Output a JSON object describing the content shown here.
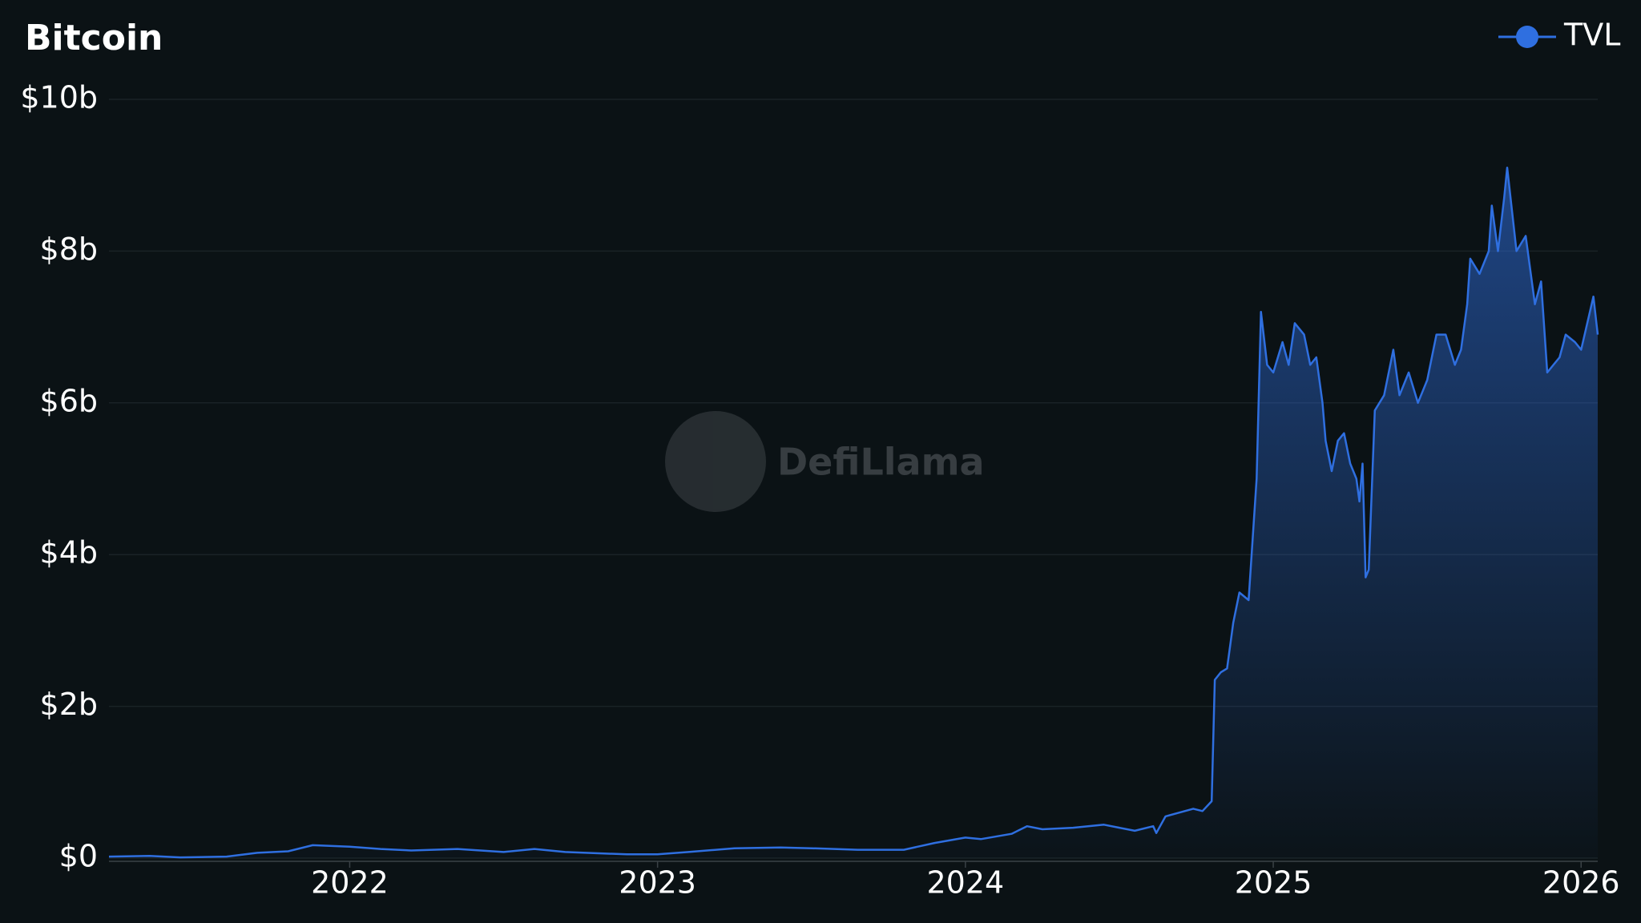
{
  "chart_data": {
    "type": "line",
    "title": "Bitcoin",
    "watermark": "DefiLlama",
    "legend": "top-right",
    "grid": true,
    "xlim": [
      2021.218,
      2026.054
    ],
    "xticks": [
      2022,
      2023,
      2024,
      2025,
      2026
    ],
    "ylim": [
      0,
      10000000000
    ],
    "yticks": [
      {
        "value": 0,
        "label": "$0"
      },
      {
        "value": 2000000000,
        "label": "$2b"
      },
      {
        "value": 4000000000,
        "label": "$4b"
      },
      {
        "value": 6000000000,
        "label": "$6b"
      },
      {
        "value": 8000000000,
        "label": "$8b"
      },
      {
        "value": 10000000000,
        "label": "$10b"
      }
    ],
    "x": [
      2021.218,
      2021.35,
      2021.45,
      2021.6,
      2021.7,
      2021.8,
      2021.88,
      2022.0,
      2022.1,
      2022.2,
      2022.35,
      2022.5,
      2022.6,
      2022.7,
      2022.9,
      2023.0,
      2023.1,
      2023.25,
      2023.4,
      2023.5,
      2023.65,
      2023.8,
      2023.9,
      2024.0,
      2024.05,
      2024.15,
      2024.2,
      2024.25,
      2024.35,
      2024.45,
      2024.55,
      2024.61,
      2024.62,
      2024.65,
      2024.74,
      2024.77,
      2024.8,
      2024.81,
      2024.83,
      2024.85,
      2024.87,
      2024.89,
      2024.92,
      2024.946,
      2024.96,
      2024.98,
      2025.0,
      2025.03,
      2025.05,
      2025.07,
      2025.1,
      2025.12,
      2025.14,
      2025.16,
      2025.17,
      2025.19,
      2025.21,
      2025.23,
      2025.25,
      2025.27,
      2025.28,
      2025.29,
      2025.3,
      2025.31,
      2025.33,
      2025.36,
      2025.39,
      2025.41,
      2025.44,
      2025.47,
      2025.5,
      2025.53,
      2025.56,
      2025.59,
      2025.61,
      2025.63,
      2025.64,
      2025.67,
      2025.7,
      2025.71,
      2025.73,
      2025.75,
      2025.76,
      2025.79,
      2025.82,
      2025.85,
      2025.87,
      2025.89,
      2025.91,
      2025.93,
      2025.95,
      2025.98,
      2026.0,
      2026.04,
      2026.054
    ],
    "series": [
      {
        "name": "TVL",
        "color": "#2f6fe0",
        "values": [
          20000000.0,
          30000000.0,
          10000000.0,
          20000000.0,
          70000000.0,
          90000000.0,
          170000000.0,
          150000000.0,
          120000000.0,
          100000000.0,
          120000000.0,
          80000000.0,
          120000000.0,
          80000000.0,
          50000000.0,
          50000000.0,
          80000000.0,
          130000000.0,
          140000000.0,
          130000000.0,
          110000000.0,
          110000000.0,
          200000000.0,
          270000000.0,
          250000000.0,
          320000000.0,
          420000000.0,
          380000000.0,
          400000000.0,
          440000000.0,
          360000000.0,
          420000000.0,
          330000000.0,
          550000000.0,
          650000000.0,
          620000000.0,
          750000000.0,
          2350000000.0,
          2450000000.0,
          2500000000.0,
          3100000000.0,
          3500000000.0,
          3400000000.0,
          5000000000.0,
          7200000000.0,
          6500000000.0,
          6400000000.0,
          6800000000.0,
          6500000000.0,
          7050000000.0,
          6900000000.0,
          6500000000.0,
          6600000000.0,
          6000000000.0,
          5500000000.0,
          5100000000.0,
          5500000000.0,
          5600000000.0,
          5200000000.0,
          5000000000.0,
          4700000000.0,
          5200000000.0,
          3700000000.0,
          3800000000.0,
          5900000000.0,
          6100000000.0,
          6700000000.0,
          6100000000.0,
          6400000000.0,
          6000000000.0,
          6300000000.0,
          6900000000.0,
          6900000000.0,
          6500000000.0,
          6700000000.0,
          7300000000.0,
          7900000000.0,
          7700000000.0,
          8000000000.0,
          8600000000.0,
          8000000000.0,
          8700000000.0,
          9100000000.0,
          8000000000.0,
          8200000000.0,
          7300000000.0,
          7600000000.0,
          6400000000.0,
          6500000000.0,
          6600000000.0,
          6900000000.0,
          6800000000.0,
          6700000000.0,
          7400000000.0,
          6900000000.0
        ]
      }
    ]
  }
}
